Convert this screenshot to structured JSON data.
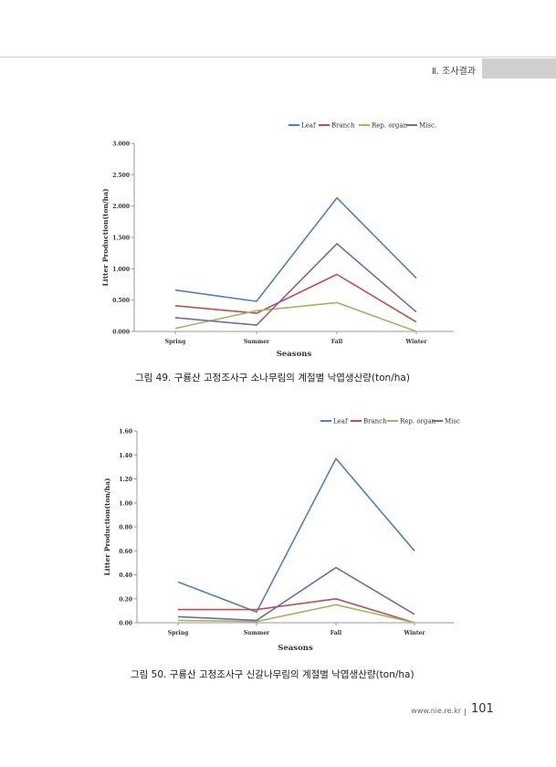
{
  "header": {
    "section": "Ⅱ. 조사결과"
  },
  "footer": {
    "url": "www.nie.re.kr",
    "page": "101"
  },
  "chart_data": [
    {
      "type": "line",
      "caption": "그림 49. 구룡산 고정조사구 소나무림의 계절별 낙엽생산량(ton/ha)",
      "categories": [
        "Spring",
        "Summer",
        "Fall",
        "Winter"
      ],
      "xlabel": "Seasons",
      "ylabel": "Litter Production(ton/ha)",
      "ylim": [
        0,
        3
      ],
      "yticks": [
        "0.000",
        "0.500",
        "1.000",
        "1.500",
        "2.000",
        "2.500",
        "3.000"
      ],
      "legend": "top-right",
      "series": [
        {
          "name": "Leaf",
          "color": "#4f81bd",
          "values": [
            0.66,
            0.48,
            2.13,
            0.85
          ]
        },
        {
          "name": "Branch",
          "color": "#c0504d",
          "values": [
            0.41,
            0.29,
            0.91,
            0.15
          ]
        },
        {
          "name": "Rep. organ",
          "color": "#9bbb59",
          "values": [
            0.05,
            0.33,
            0.46,
            0.0
          ]
        },
        {
          "name": "Misc.",
          "color": "#8064a2",
          "values": [
            0.22,
            0.1,
            1.4,
            0.31
          ]
        }
      ]
    },
    {
      "type": "line",
      "caption": "그림 50. 구룡산 고정조사구 신갈나무림의 계절별 낙엽생산량(ton/ha)",
      "categories": [
        "Spring",
        "Summer",
        "Fall",
        "Winter"
      ],
      "xlabel": "Seasons",
      "ylabel": "Litter Production(ton/ha)",
      "ylim": [
        0,
        1.6
      ],
      "yticks": [
        "0.00",
        "0.20",
        "0.40",
        "0.60",
        "0.80",
        "1.00",
        "1.20",
        "1.40",
        "1.60"
      ],
      "legend": "top-right",
      "series": [
        {
          "name": "Leaf",
          "color": "#4f81bd",
          "values": [
            0.34,
            0.09,
            1.37,
            0.6
          ]
        },
        {
          "name": "Branch",
          "color": "#c0504d",
          "values": [
            0.11,
            0.11,
            0.2,
            0.0
          ]
        },
        {
          "name": "Rep. organ",
          "color": "#9bbb59",
          "values": [
            0.02,
            0.01,
            0.15,
            0.0
          ]
        },
        {
          "name": "Misc",
          "color": "#8064a2",
          "values": [
            0.05,
            0.02,
            0.46,
            0.07
          ]
        }
      ]
    }
  ]
}
